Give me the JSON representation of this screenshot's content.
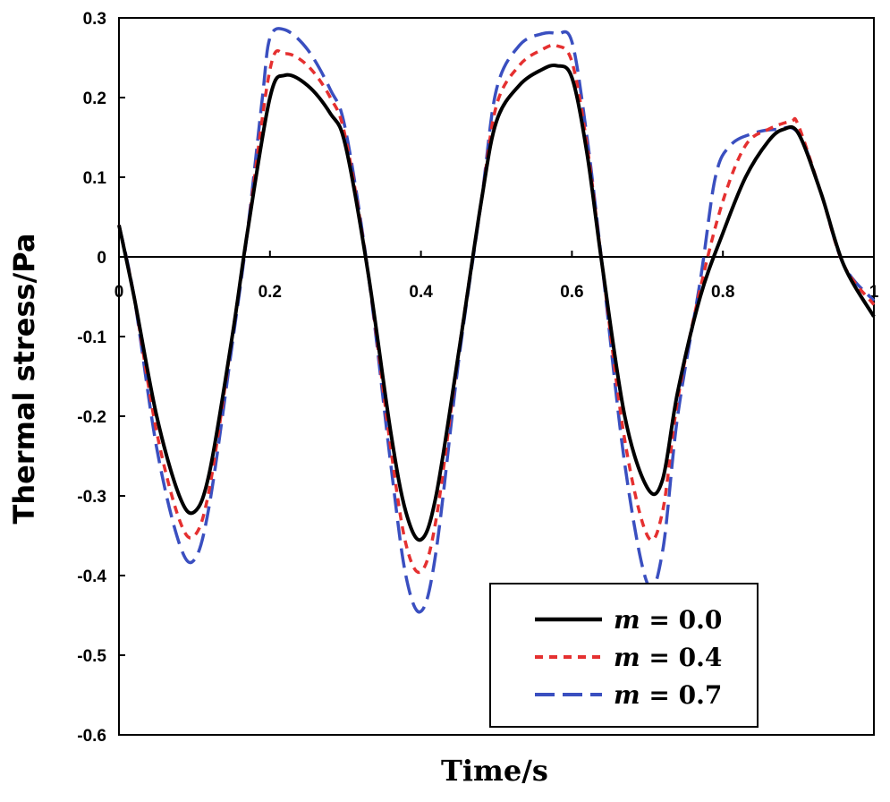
{
  "chart_data": {
    "type": "line",
    "title": "",
    "xlabel": "Time/s",
    "ylabel": "Thermal stress/Pa",
    "xlim": [
      0,
      1
    ],
    "ylim": [
      -0.6,
      0.3
    ],
    "xticks": [
      "0",
      "0.2",
      "0.4",
      "0.6",
      "0.8",
      "1"
    ],
    "yticks": [
      "0.3",
      "0.2",
      "0.1",
      "0",
      "-0.1",
      "-0.2",
      "-0.3",
      "-0.4",
      "-0.5",
      "-0.6"
    ],
    "grid": false,
    "legend_position": "bottom-right",
    "series": [
      {
        "name": "m = 0.0",
        "var": "m",
        "eq": " = 0.0",
        "color": "#000000",
        "style": "solid",
        "x": [
          -0.005,
          0.02,
          0.05,
          0.08,
          0.1,
          0.12,
          0.15,
          0.17,
          0.2,
          0.22,
          0.25,
          0.28,
          0.3,
          0.33,
          0.36,
          0.38,
          0.4,
          0.42,
          0.45,
          0.48,
          0.5,
          0.53,
          0.56,
          0.58,
          0.6,
          0.62,
          0.64,
          0.67,
          0.7,
          0.72,
          0.74,
          0.77,
          0.8,
          0.83,
          0.86,
          0.88,
          0.9,
          0.93,
          0.96,
          1.0
        ],
        "values": [
          0.04,
          -0.05,
          -0.2,
          -0.3,
          -0.32,
          -0.27,
          -0.1,
          0.03,
          0.2,
          0.228,
          0.215,
          0.18,
          0.14,
          -0.02,
          -0.22,
          -0.32,
          -0.355,
          -0.3,
          -0.12,
          0.07,
          0.17,
          0.215,
          0.235,
          0.24,
          0.225,
          0.13,
          -0.01,
          -0.2,
          -0.29,
          -0.28,
          -0.17,
          -0.05,
          0.03,
          0.1,
          0.145,
          0.16,
          0.155,
          0.08,
          -0.01,
          -0.075
        ]
      },
      {
        "name": "m = 0.4",
        "var": "m",
        "eq": " = 0.4",
        "color": "#e53030",
        "style": "dotted",
        "x": [
          -0.005,
          0.02,
          0.05,
          0.08,
          0.1,
          0.12,
          0.15,
          0.17,
          0.2,
          0.22,
          0.25,
          0.28,
          0.3,
          0.33,
          0.36,
          0.38,
          0.4,
          0.42,
          0.45,
          0.48,
          0.5,
          0.53,
          0.56,
          0.58,
          0.6,
          0.62,
          0.64,
          0.67,
          0.7,
          0.72,
          0.74,
          0.77,
          0.8,
          0.83,
          0.86,
          0.89,
          0.9,
          0.93,
          0.96,
          1.0
        ],
        "values": [
          0.04,
          -0.05,
          -0.22,
          -0.33,
          -0.35,
          -0.29,
          -0.1,
          0.03,
          0.235,
          0.255,
          0.24,
          0.2,
          0.15,
          -0.02,
          -0.24,
          -0.36,
          -0.395,
          -0.33,
          -0.12,
          0.07,
          0.19,
          0.24,
          0.26,
          0.265,
          0.245,
          0.14,
          -0.01,
          -0.23,
          -0.35,
          -0.32,
          -0.18,
          -0.04,
          0.07,
          0.14,
          0.16,
          0.17,
          0.165,
          0.08,
          -0.01,
          -0.06
        ]
      },
      {
        "name": "m = 0.7",
        "var": "m",
        "eq": " = 0.7",
        "color": "#3a4fc0",
        "style": "dashed",
        "x": [
          -0.005,
          0.02,
          0.05,
          0.08,
          0.1,
          0.12,
          0.15,
          0.17,
          0.19,
          0.2,
          0.22,
          0.25,
          0.28,
          0.3,
          0.33,
          0.36,
          0.38,
          0.4,
          0.42,
          0.45,
          0.48,
          0.5,
          0.53,
          0.56,
          0.58,
          0.6,
          0.62,
          0.64,
          0.67,
          0.7,
          0.72,
          0.74,
          0.77,
          0.79,
          0.81,
          0.84,
          0.87,
          0.9,
          0.93,
          0.96,
          1.0
        ],
        "values": [
          0.04,
          -0.05,
          -0.24,
          -0.36,
          -0.38,
          -0.31,
          -0.11,
          0.03,
          0.2,
          0.275,
          0.285,
          0.26,
          0.21,
          0.16,
          -0.02,
          -0.26,
          -0.4,
          -0.445,
          -0.37,
          -0.13,
          0.07,
          0.21,
          0.265,
          0.28,
          0.28,
          0.27,
          0.15,
          -0.01,
          -0.26,
          -0.41,
          -0.37,
          -0.2,
          -0.03,
          0.1,
          0.14,
          0.155,
          0.16,
          0.155,
          0.08,
          -0.01,
          -0.055
        ]
      }
    ]
  }
}
